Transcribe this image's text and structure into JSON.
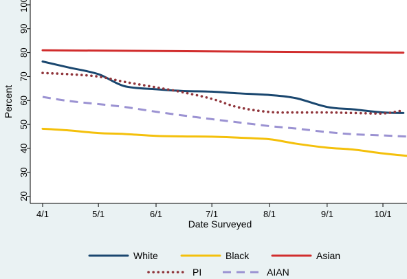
{
  "chart_data": {
    "type": "line",
    "title": "",
    "xlabel": "Date Surveyed",
    "ylabel": "Percent",
    "x": [
      "2024-04-01",
      "2024-05-01",
      "2024-06-01",
      "2024-07-01",
      "2024-08-01",
      "2024-09-01",
      "2024-10-01"
    ],
    "x_tick_labels": [
      "4/1",
      "5/1",
      "6/1",
      "7/1",
      "8/1",
      "9/1",
      "10/1"
    ],
    "y_ticks": [
      20,
      30,
      40,
      50,
      60,
      70,
      80,
      90,
      100
    ],
    "ylim": [
      17,
      102
    ],
    "grid": false,
    "legend_position": "bottom",
    "series": [
      {
        "name": "White",
        "color": "#1a476f",
        "line_style": "solid",
        "points": [
          [
            "2024-04-01",
            76.3
          ],
          [
            "2024-04-15",
            73.8
          ],
          [
            "2024-05-01",
            71
          ],
          [
            "2024-05-15",
            66
          ],
          [
            "2024-06-01",
            64.7
          ],
          [
            "2024-06-15",
            64
          ],
          [
            "2024-07-01",
            63.7
          ],
          [
            "2024-07-15",
            63
          ],
          [
            "2024-08-01",
            62.3
          ],
          [
            "2024-08-15",
            61
          ],
          [
            "2024-09-01",
            57.3
          ],
          [
            "2024-09-15",
            56.3
          ],
          [
            "2024-10-01",
            55
          ],
          [
            "2024-10-12",
            54.8
          ]
        ]
      },
      {
        "name": "Black",
        "color": "#f4c00b",
        "line_style": "solid",
        "points": [
          [
            "2024-04-01",
            48.2
          ],
          [
            "2024-04-15",
            47.5
          ],
          [
            "2024-05-01",
            46.4
          ],
          [
            "2024-05-15",
            46
          ],
          [
            "2024-06-01",
            45.2
          ],
          [
            "2024-06-15",
            45
          ],
          [
            "2024-07-01",
            44.9
          ],
          [
            "2024-07-15",
            44.5
          ],
          [
            "2024-08-01",
            43.8
          ],
          [
            "2024-08-15",
            42
          ],
          [
            "2024-09-01",
            40.3
          ],
          [
            "2024-09-15",
            39.5
          ],
          [
            "2024-10-01",
            37.9
          ],
          [
            "2024-10-15",
            36.8
          ]
        ]
      },
      {
        "name": "Asian",
        "color": "#d12d2d",
        "line_style": "solid",
        "points": [
          [
            "2024-04-01",
            81
          ],
          [
            "2024-10-12",
            80
          ]
        ]
      },
      {
        "name": "PI",
        "color": "#90353b",
        "line_style": "dotted",
        "points": [
          [
            "2024-04-01",
            71.5
          ],
          [
            "2024-04-15",
            71
          ],
          [
            "2024-05-01",
            70
          ],
          [
            "2024-05-15",
            67.8
          ],
          [
            "2024-06-01",
            65.5
          ],
          [
            "2024-06-15",
            63.5
          ],
          [
            "2024-07-01",
            60.7
          ],
          [
            "2024-07-15",
            57.2
          ],
          [
            "2024-08-01",
            55.2
          ],
          [
            "2024-08-15",
            55
          ],
          [
            "2024-09-01",
            55
          ],
          [
            "2024-09-15",
            54.8
          ],
          [
            "2024-10-01",
            54.6
          ],
          [
            "2024-10-10",
            55.6
          ]
        ]
      },
      {
        "name": "AIAN",
        "color": "#9b92d2",
        "line_style": "dashed",
        "points": [
          [
            "2024-04-01",
            61.5
          ],
          [
            "2024-04-15",
            59.8
          ],
          [
            "2024-05-01",
            58.5
          ],
          [
            "2024-05-15",
            57.3
          ],
          [
            "2024-06-01",
            55.3
          ],
          [
            "2024-06-15",
            53.8
          ],
          [
            "2024-07-01",
            52.2
          ],
          [
            "2024-07-15",
            50.9
          ],
          [
            "2024-08-01",
            49.3
          ],
          [
            "2024-08-15",
            48.3
          ],
          [
            "2024-09-01",
            46.8
          ],
          [
            "2024-09-15",
            45.9
          ],
          [
            "2024-10-01",
            45.4
          ],
          [
            "2024-10-15",
            44.9
          ]
        ]
      }
    ]
  }
}
